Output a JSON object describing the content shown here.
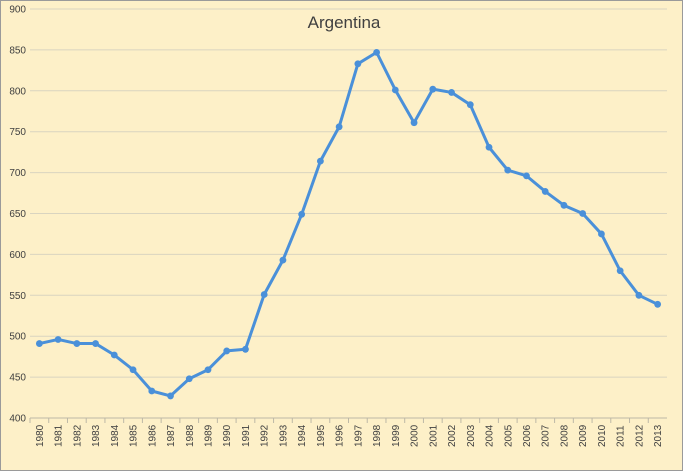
{
  "chart_data": {
    "type": "line",
    "title": "Argentina",
    "xlabel": "",
    "ylabel": "",
    "ylim": [
      400,
      900
    ],
    "y_ticks": [
      "400",
      "450",
      "500",
      "550",
      "600",
      "650",
      "700",
      "750",
      "800",
      "850",
      "900"
    ],
    "grid": true,
    "legend": "none",
    "line_color": "#4a90d9",
    "background_color": "#fdf0c8",
    "categories": [
      "1980",
      "1981",
      "1982",
      "1983",
      "1984",
      "1985",
      "1986",
      "1987",
      "1988",
      "1989",
      "1990",
      "1991",
      "1992",
      "1993",
      "1994",
      "1995",
      "1996",
      "1997",
      "1998",
      "1999",
      "2000",
      "2001",
      "2002",
      "2003",
      "2004",
      "2005",
      "2006",
      "2007",
      "2008",
      "2009",
      "2010",
      "2011",
      "2012",
      "2013"
    ],
    "series": [
      {
        "values": [
          491,
          496,
          491,
          491,
          477,
          459,
          433,
          427,
          448,
          459,
          482,
          484,
          551,
          593,
          649,
          714,
          756,
          833,
          847,
          801,
          761,
          802,
          798,
          783,
          731,
          703,
          696,
          677,
          660,
          650,
          625,
          580,
          550,
          539
        ]
      }
    ]
  }
}
